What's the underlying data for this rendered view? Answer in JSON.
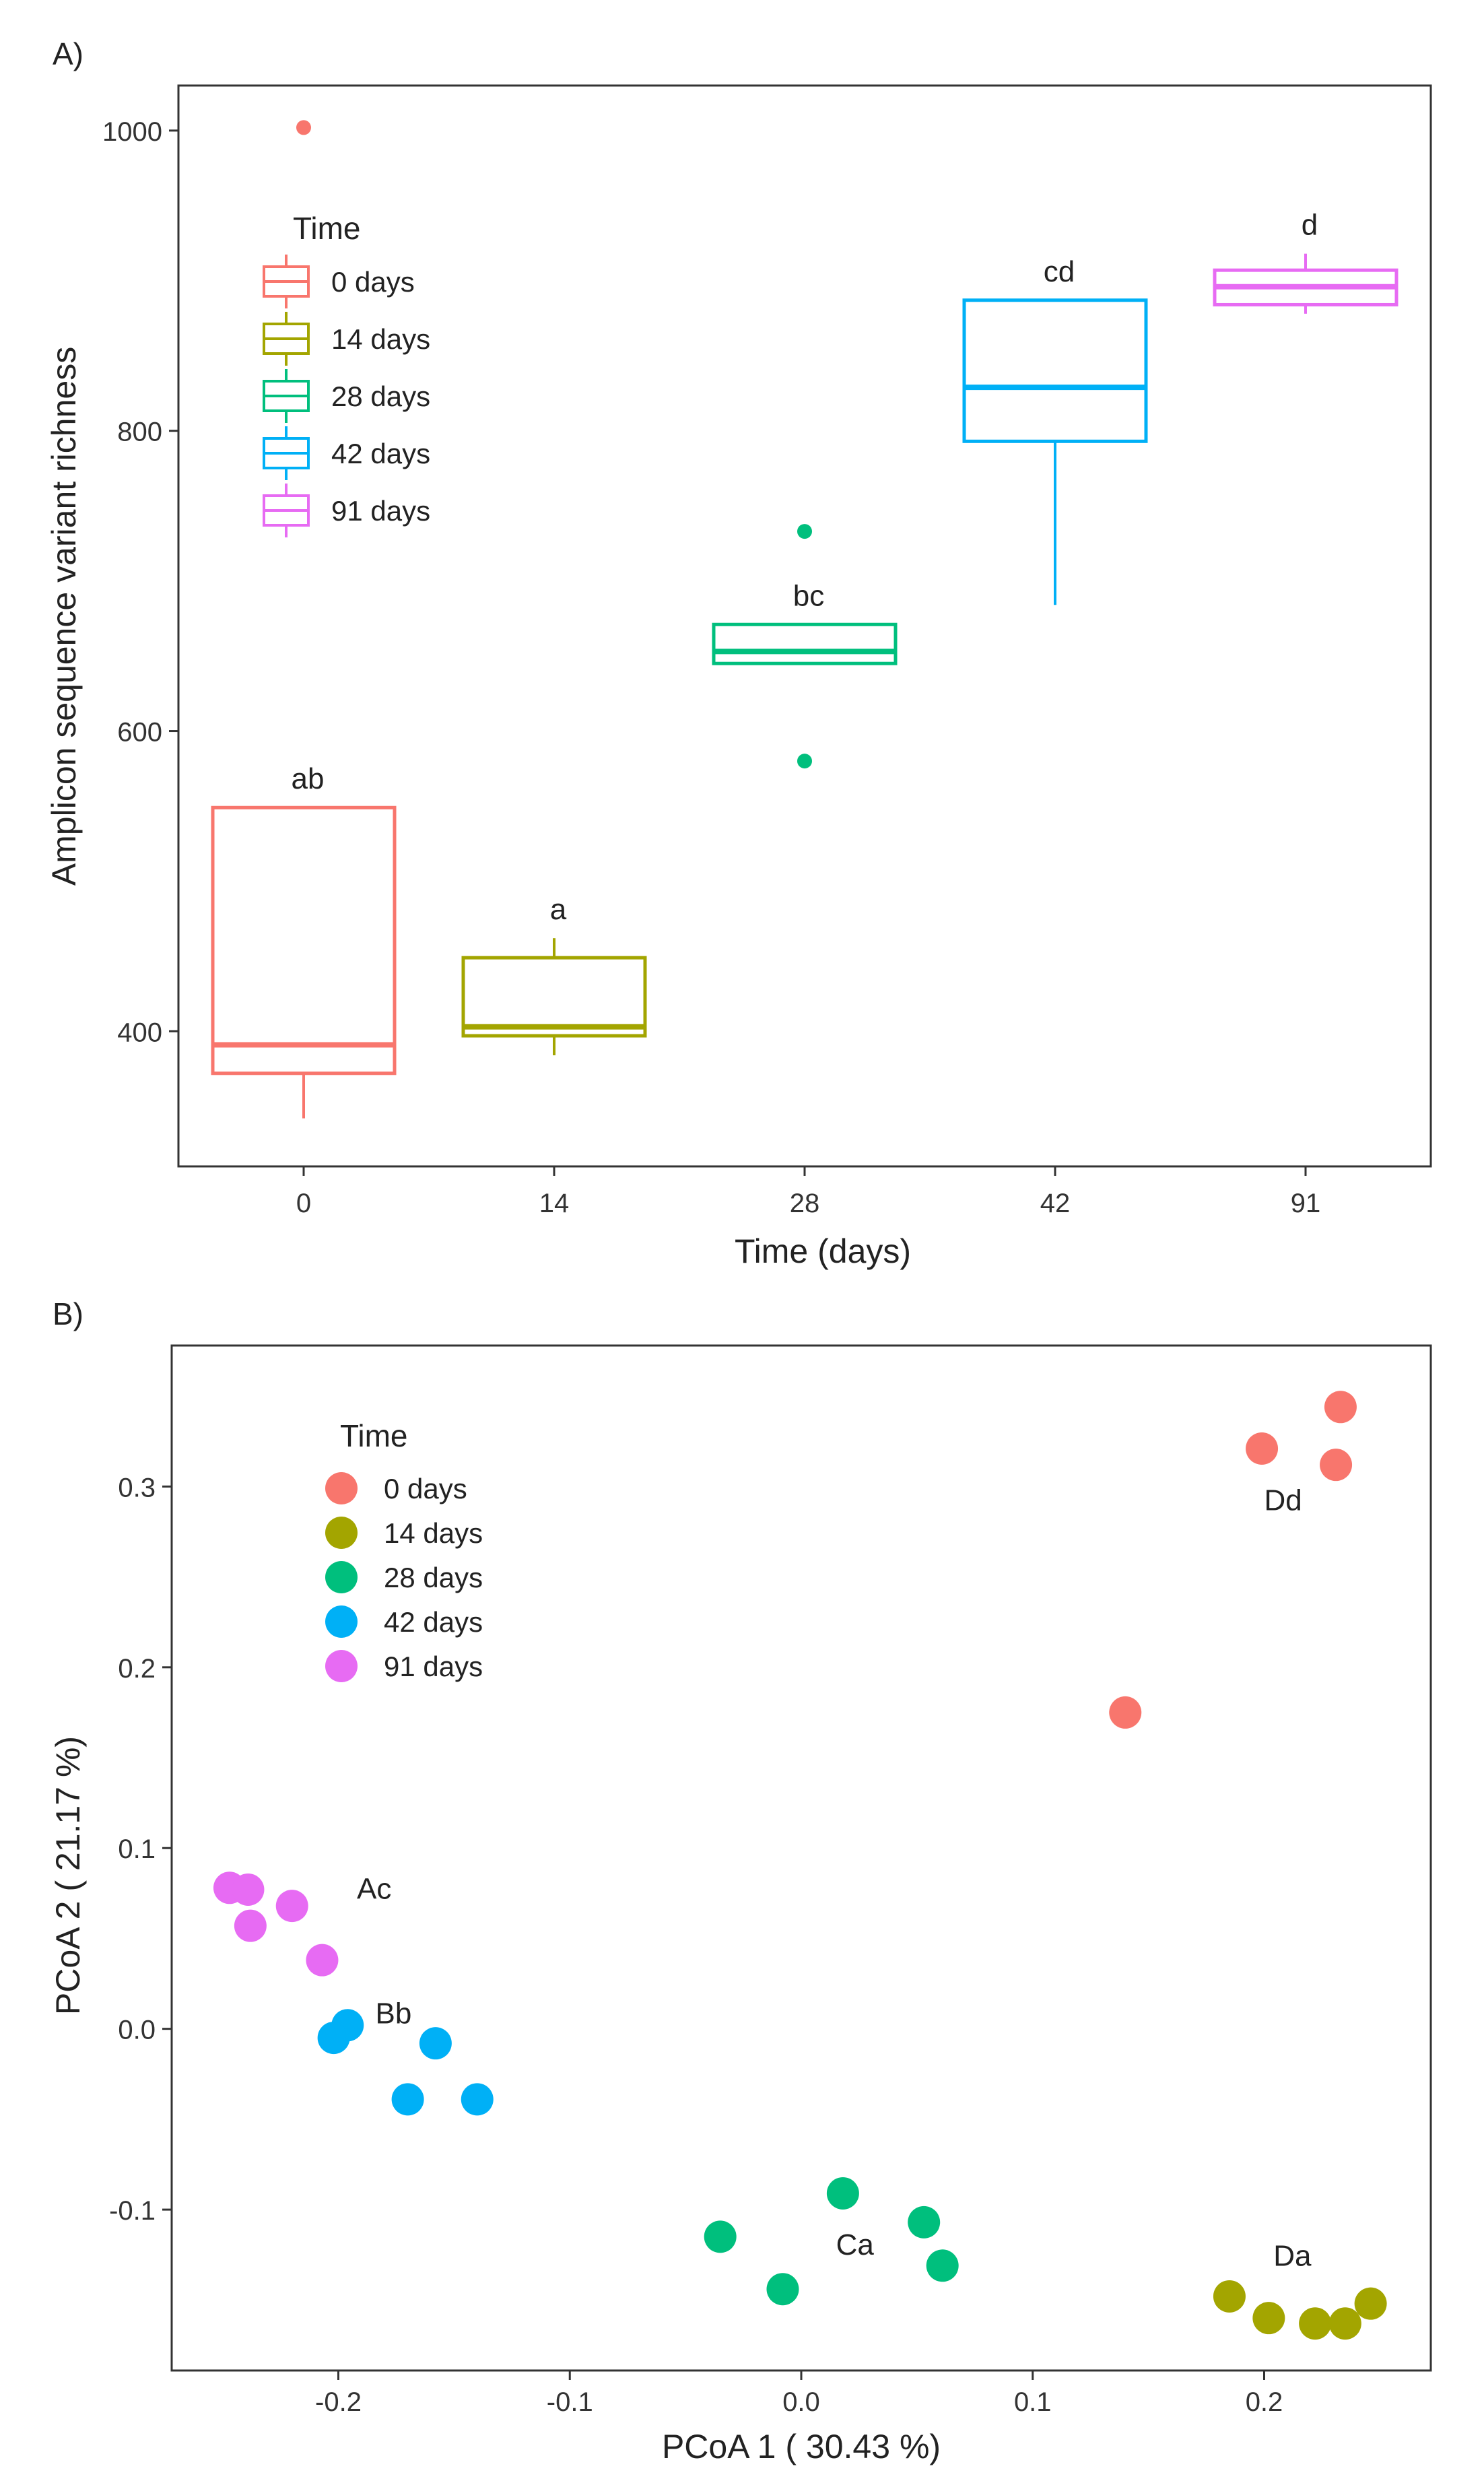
{
  "panel_labels": {
    "a": "A)",
    "b": "B)"
  },
  "colors": {
    "0 days": "#f8766d",
    "14 days": "#a3a500",
    "28 days": "#00bf7d",
    "42 days": "#00b0f6",
    "91 days": "#e76bf3"
  },
  "chart_data": [
    {
      "type": "box",
      "xlabel": "Time (days)",
      "ylabel": "Amplicon sequence variant richness",
      "categories": [
        "0",
        "14",
        "28",
        "42",
        "91"
      ],
      "yticks": [
        400,
        600,
        800,
        1000
      ],
      "ylim": [
        310,
        1030
      ],
      "legend": {
        "title": "Time",
        "entries": [
          "0 days",
          "14 days",
          "28 days",
          "42 days",
          "91 days"
        ],
        "placement": "top-left"
      },
      "boxes": [
        {
          "category": "0",
          "group": "0 days",
          "min": 342,
          "q1": 372,
          "median": 391,
          "q3": 549,
          "max": 549,
          "outliers": [
            1002
          ],
          "letter": "ab"
        },
        {
          "category": "14",
          "group": "14 days",
          "min": 384,
          "q1": 397,
          "median": 403,
          "q3": 449,
          "max": 462,
          "outliers": [],
          "letter": "a"
        },
        {
          "category": "28",
          "group": "28 days",
          "min": 645,
          "q1": 645,
          "median": 653,
          "q3": 671,
          "max": 671,
          "outliers": [
            733,
            580
          ],
          "letter": "bc"
        },
        {
          "category": "42",
          "group": "42 days",
          "min": 684,
          "q1": 793,
          "median": 829,
          "q3": 887,
          "max": 887,
          "outliers": [],
          "letter": "cd"
        },
        {
          "category": "91",
          "group": "91 days",
          "min": 878,
          "q1": 884,
          "median": 896,
          "q3": 907,
          "max": 918,
          "outliers": [],
          "letter": "d"
        }
      ]
    },
    {
      "type": "scatter",
      "xlabel": "PCoA 1 ( 30.43 %)",
      "ylabel": "PCoA 2 ( 21.17 %)",
      "xticks": [
        -0.2,
        -0.1,
        0.0,
        0.1,
        0.2
      ],
      "xtick_labels": [
        "-0.2",
        "-0.1",
        "0.0",
        "0.1",
        "0.2"
      ],
      "yticks": [
        -0.1,
        0.0,
        0.1,
        0.2,
        0.3
      ],
      "ytick_labels": [
        "-0.1",
        "0.0",
        "0.1",
        "0.2",
        "0.3"
      ],
      "xlim": [
        -0.272,
        0.272
      ],
      "ylim": [
        -0.189,
        0.378
      ],
      "legend": {
        "title": "Time",
        "entries": [
          "0 days",
          "14 days",
          "28 days",
          "42 days",
          "91 days"
        ],
        "placement": "top-left"
      },
      "series": [
        {
          "name": "0 days",
          "points": [
            [
              0.233,
              0.344
            ],
            [
              0.199,
              0.321
            ],
            [
              0.231,
              0.312
            ],
            [
              0.14,
              0.175
            ]
          ]
        },
        {
          "name": "14 days",
          "points": [
            [
              0.185,
              -0.148
            ],
            [
              0.202,
              -0.16
            ],
            [
              0.222,
              -0.163
            ],
            [
              0.235,
              -0.163
            ],
            [
              0.246,
              -0.152
            ]
          ]
        },
        {
          "name": "28 days",
          "points": [
            [
              0.018,
              -0.091
            ],
            [
              -0.035,
              -0.115
            ],
            [
              0.053,
              -0.107
            ],
            [
              0.061,
              -0.131
            ],
            [
              -0.008,
              -0.144
            ]
          ]
        },
        {
          "name": "42 days",
          "points": [
            [
              -0.196,
              0.002
            ],
            [
              -0.202,
              -0.005
            ],
            [
              -0.158,
              -0.008
            ],
            [
              -0.17,
              -0.039
            ],
            [
              -0.14,
              -0.039
            ]
          ]
        },
        {
          "name": "91 days",
          "points": [
            [
              -0.247,
              0.078
            ],
            [
              -0.239,
              0.077
            ],
            [
              -0.238,
              0.057
            ],
            [
              -0.22,
              0.068
            ],
            [
              -0.207,
              0.038
            ]
          ]
        }
      ],
      "annotations": [
        {
          "text": "Dd",
          "x": 0.2,
          "y": 0.287
        },
        {
          "text": "Ac",
          "x": -0.192,
          "y": 0.072
        },
        {
          "text": "Bb",
          "x": -0.184,
          "y": 0.003
        },
        {
          "text": "Ca",
          "x": 0.015,
          "y": -0.125
        },
        {
          "text": "Da",
          "x": 0.204,
          "y": -0.131
        }
      ]
    }
  ]
}
